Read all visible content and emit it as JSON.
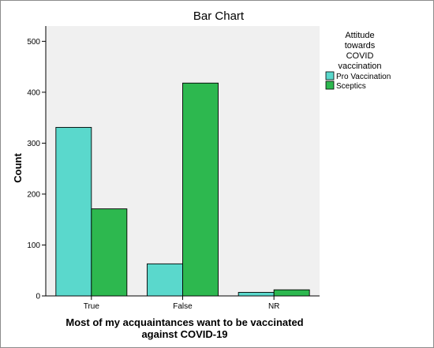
{
  "chart_data": {
    "type": "bar",
    "title": "Bar Chart",
    "xlabel_lines": [
      "Most of my acquaintances want to be vaccinated",
      "against COVID-19"
    ],
    "ylabel": "Count",
    "categories": [
      "True",
      "False",
      "NR"
    ],
    "series": [
      {
        "name": "Pro Vaccination",
        "values": [
          331,
          63,
          7
        ]
      },
      {
        "name": "Sceptics",
        "values": [
          171,
          418,
          12
        ]
      }
    ],
    "ylim": [
      0,
      530
    ],
    "yticks": [
      0,
      100,
      200,
      300,
      400,
      500
    ],
    "legend": {
      "title_lines": [
        "Attitude",
        "towards",
        "COVID",
        "vaccination"
      ],
      "placement": "right"
    },
    "grid": false
  },
  "colors": {
    "series": [
      "#5ad8cc",
      "#2db84f"
    ],
    "plot_background": "#f0f0f0",
    "bar_stroke": "#000000"
  }
}
